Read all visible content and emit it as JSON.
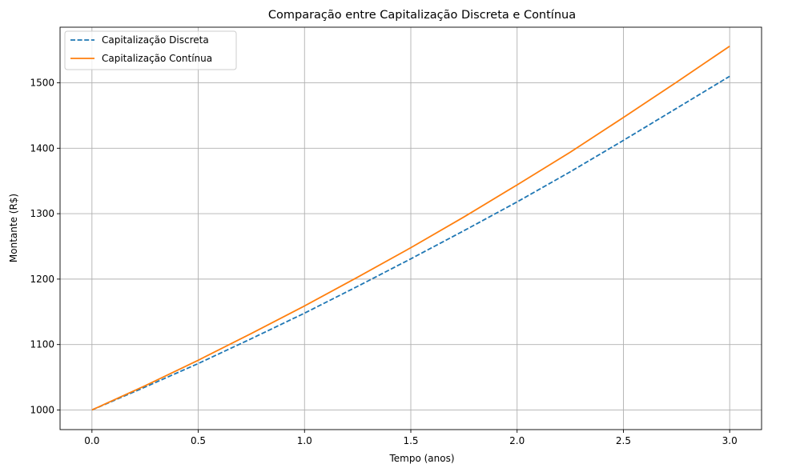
{
  "chart_data": {
    "type": "line",
    "title": "Comparação entre Capitalização Discreta e Contínua",
    "xlabel": "Tempo (anos)",
    "ylabel": "Montante (R$)",
    "xlim": [
      -0.15,
      3.15
    ],
    "ylim": [
      970,
      1585
    ],
    "xticks": [
      0.0,
      0.5,
      1.0,
      1.5,
      2.0,
      2.5,
      3.0
    ],
    "xtick_labels": [
      "0.0",
      "0.5",
      "1.0",
      "1.5",
      "2.0",
      "2.5",
      "3.0"
    ],
    "yticks": [
      1000,
      1100,
      1200,
      1300,
      1400,
      1500
    ],
    "ytick_labels": [
      "1000",
      "1100",
      "1200",
      "1300",
      "1400",
      "1500"
    ],
    "grid": true,
    "legend_position": "upper-left",
    "x": [
      0.0,
      0.25,
      0.5,
      0.75,
      1.0,
      1.25,
      1.5,
      1.75,
      2.0,
      2.25,
      2.5,
      2.75,
      3.0
    ],
    "series": [
      {
        "name": "Capitalização Discreta",
        "color": "#1f77b4",
        "dash": "dashed",
        "values": [
          1000,
          1035,
          1071,
          1109,
          1148,
          1189,
          1231,
          1274,
          1318,
          1364,
          1412,
          1461,
          1510
        ]
      },
      {
        "name": "Capitalização Contínua",
        "color": "#ff7f0e",
        "dash": "solid",
        "values": [
          1000,
          1037,
          1076,
          1117,
          1159,
          1203,
          1248,
          1295,
          1344,
          1394,
          1447,
          1501,
          1556
        ]
      }
    ]
  }
}
